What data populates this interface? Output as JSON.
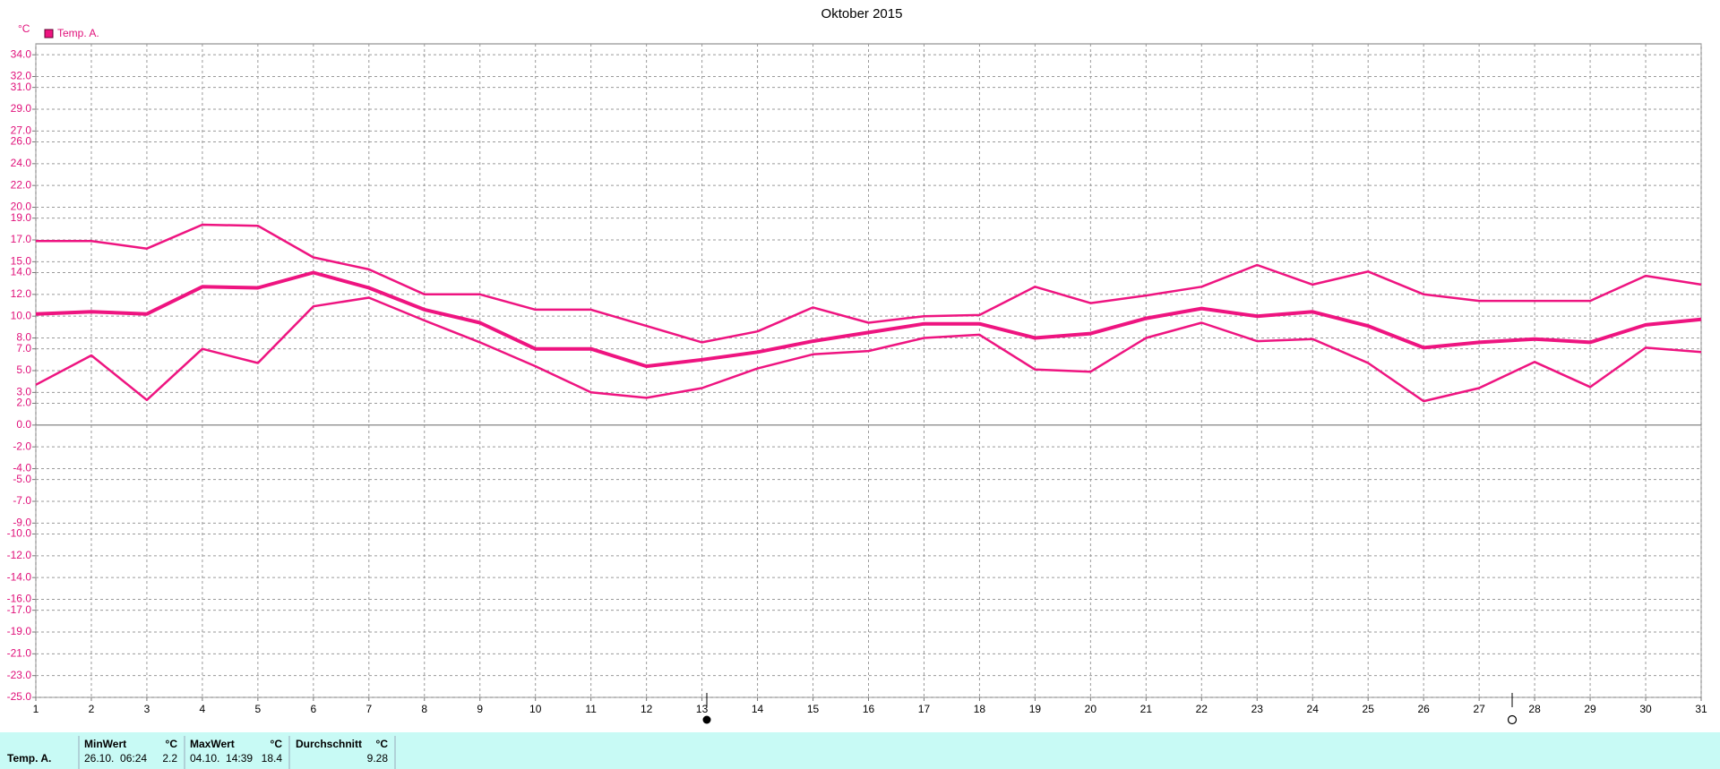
{
  "chart_data": {
    "type": "line",
    "title": "Oktober 2015",
    "y_unit": "°C",
    "legend_label": "Temp. A.",
    "x": [
      1,
      2,
      3,
      4,
      5,
      6,
      7,
      8,
      9,
      10,
      11,
      12,
      13,
      14,
      15,
      16,
      17,
      18,
      19,
      20,
      21,
      22,
      23,
      24,
      25,
      26,
      27,
      28,
      29,
      30,
      31
    ],
    "xlim": [
      1,
      31
    ],
    "xticks": [
      1,
      2,
      3,
      4,
      5,
      6,
      7,
      8,
      9,
      10,
      11,
      12,
      13,
      14,
      15,
      16,
      17,
      18,
      19,
      20,
      21,
      22,
      23,
      24,
      25,
      26,
      27,
      28,
      29,
      30,
      31
    ],
    "ylim": [
      -25,
      35
    ],
    "yticks": [
      {
        "value": 34,
        "label": "34.0"
      },
      {
        "value": 32,
        "label": "32.0"
      },
      {
        "value": 31,
        "label": "31.0"
      },
      {
        "value": 29,
        "label": "29.0"
      },
      {
        "value": 27,
        "label": "27.0"
      },
      {
        "value": 26,
        "label": "26.0"
      },
      {
        "value": 24,
        "label": "24.0"
      },
      {
        "value": 22,
        "label": "22.0"
      },
      {
        "value": 20,
        "label": "20.0"
      },
      {
        "value": 19,
        "label": "19.0"
      },
      {
        "value": 17,
        "label": "17.0"
      },
      {
        "value": 15,
        "label": "15.0"
      },
      {
        "value": 14,
        "label": "14.0"
      },
      {
        "value": 12,
        "label": "12.0"
      },
      {
        "value": 10,
        "label": "10.0"
      },
      {
        "value": 8,
        "label": "8.0"
      },
      {
        "value": 7,
        "label": "7.0"
      },
      {
        "value": 5,
        "label": "5.0"
      },
      {
        "value": 3,
        "label": "3.0"
      },
      {
        "value": 2,
        "label": "2.0"
      },
      {
        "value": 0,
        "label": "0.0"
      },
      {
        "value": -2,
        "label": "-2.0"
      },
      {
        "value": -4,
        "label": "-4.0"
      },
      {
        "value": -5,
        "label": "-5.0"
      },
      {
        "value": -7,
        "label": "-7.0"
      },
      {
        "value": -9,
        "label": "-9.0"
      },
      {
        "value": -10,
        "label": "-10.0"
      },
      {
        "value": -12,
        "label": "-12.0"
      },
      {
        "value": -14,
        "label": "-14.0"
      },
      {
        "value": -16,
        "label": "-16.0"
      },
      {
        "value": -17,
        "label": "-17.0"
      },
      {
        "value": -19,
        "label": "-19.0"
      },
      {
        "value": -21,
        "label": "-21.0"
      },
      {
        "value": -23,
        "label": "-23.0"
      },
      {
        "value": -25,
        "label": "-25.0"
      }
    ],
    "grid": true,
    "series": [
      {
        "color": "#ee1480",
        "width": 2.5,
        "values": [
          16.9,
          16.9,
          16.2,
          18.4,
          18.3,
          15.4,
          14.3,
          12.0,
          12.0,
          10.6,
          10.6,
          9.1,
          7.6,
          8.6,
          10.8,
          9.4,
          10.0,
          10.1,
          12.7,
          11.2,
          11.9,
          12.7,
          14.7,
          12.9,
          14.1,
          12.0,
          11.4,
          11.4,
          11.4,
          13.7,
          12.9
        ]
      },
      {
        "color": "#ee1480",
        "width": 4,
        "values": [
          10.2,
          10.4,
          10.2,
          12.7,
          12.6,
          14.0,
          12.6,
          10.6,
          9.4,
          7.0,
          7.0,
          5.4,
          6.0,
          6.7,
          7.7,
          8.5,
          9.3,
          9.3,
          8.0,
          8.4,
          9.8,
          10.7,
          10.0,
          10.4,
          9.1,
          7.1,
          7.6,
          7.9,
          7.6,
          9.2,
          9.7
        ]
      },
      {
        "color": "#ee1480",
        "width": 2.5,
        "values": [
          3.7,
          6.4,
          2.3,
          7.0,
          5.7,
          10.9,
          11.7,
          9.6,
          7.6,
          5.4,
          3.0,
          2.5,
          3.4,
          5.2,
          6.5,
          6.8,
          8.0,
          8.3,
          5.1,
          4.9,
          8.0,
          9.4,
          7.7,
          7.9,
          5.7,
          2.2,
          3.4,
          5.8,
          3.5,
          7.1,
          6.7
        ]
      }
    ]
  },
  "summary": {
    "row_label": "Temp. A.",
    "min": {
      "header": "MinWert",
      "unit": "°C",
      "time": "26.10.  06:24",
      "value": 2.2
    },
    "max": {
      "header": "MaxWert",
      "unit": "°C",
      "time": "04.10.  14:39",
      "value": 18.4
    },
    "mean": {
      "header": "Durchschnitt",
      "unit": "°C",
      "value": 9.28
    }
  }
}
